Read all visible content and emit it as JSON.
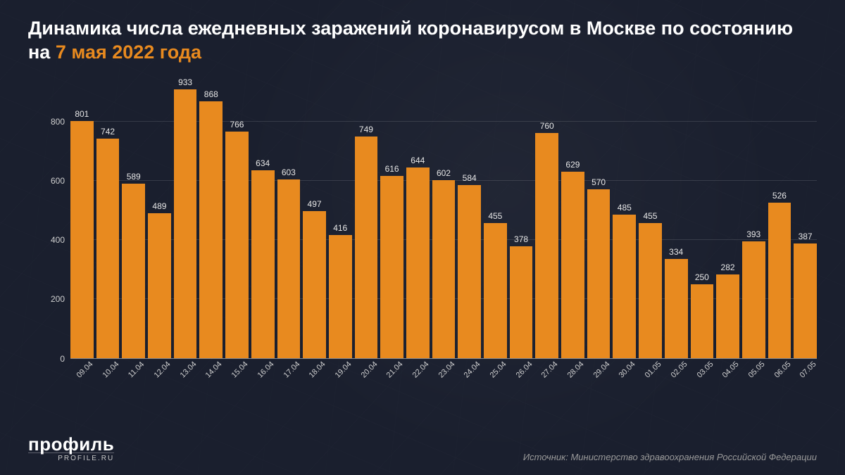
{
  "title_prefix": "Динамика числа ежедневных заражений коронавирусом в Москве по состоянию на ",
  "title_accent": "7 мая 2022 года",
  "chart": {
    "type": "bar",
    "bar_color": "#e88a1f",
    "background_color": "#1a1f2e",
    "grid_color": "rgba(255,255,255,0.12)",
    "text_color": "#e6e6e6",
    "axis_text_color": "#cfcfcf",
    "value_label_fontsize": 12,
    "axis_label_fontsize": 11,
    "ylim": [
      0,
      950
    ],
    "yticks": [
      0,
      200,
      400,
      600,
      800
    ],
    "categories": [
      "09.04",
      "10.04",
      "11.04",
      "12.04",
      "13.04",
      "14.04",
      "15.04",
      "16.04",
      "17.04",
      "18.04",
      "19.04",
      "20.04",
      "21.04",
      "22.04",
      "23.04",
      "24.04",
      "25.04",
      "26.04",
      "27.04",
      "28.04",
      "29.04",
      "30.04",
      "01.05",
      "02.05",
      "03.05",
      "04.05",
      "05.05",
      "06.05",
      "07.05"
    ],
    "values": [
      801,
      742,
      589,
      489,
      933,
      868,
      766,
      634,
      603,
      497,
      416,
      749,
      616,
      644,
      602,
      584,
      455,
      378,
      760,
      629,
      570,
      485,
      455,
      334,
      250,
      282,
      393,
      526,
      387
    ]
  },
  "logo": {
    "main": "профиль",
    "sub": "PROFILE.RU"
  },
  "source": "Источник: Министерство здравоохранения Российской Федерации"
}
